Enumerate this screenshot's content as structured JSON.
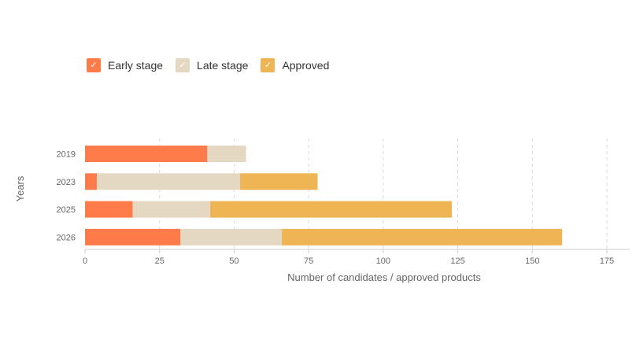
{
  "chart_data": {
    "type": "bar",
    "orientation": "horizontal",
    "stacked": true,
    "categories": [
      "2019",
      "2023",
      "2025",
      "2026"
    ],
    "series": [
      {
        "name": "Early stage",
        "color": "#ff7b4a",
        "values": [
          41,
          4,
          16,
          32
        ]
      },
      {
        "name": "Late stage",
        "color": "#e5d8c2",
        "values": [
          13,
          48,
          26,
          34
        ]
      },
      {
        "name": "Approved",
        "color": "#efb555",
        "values": [
          0,
          26,
          81,
          94
        ]
      }
    ],
    "xlabel": "Number of candidates / approved products",
    "ylabel": "Years",
    "xlim": [
      0,
      175
    ],
    "xticks": [
      0,
      25,
      50,
      75,
      100,
      125,
      150,
      175
    ],
    "grid": true,
    "legend_position": "top-left",
    "legend_check_icon": "check-icon"
  }
}
